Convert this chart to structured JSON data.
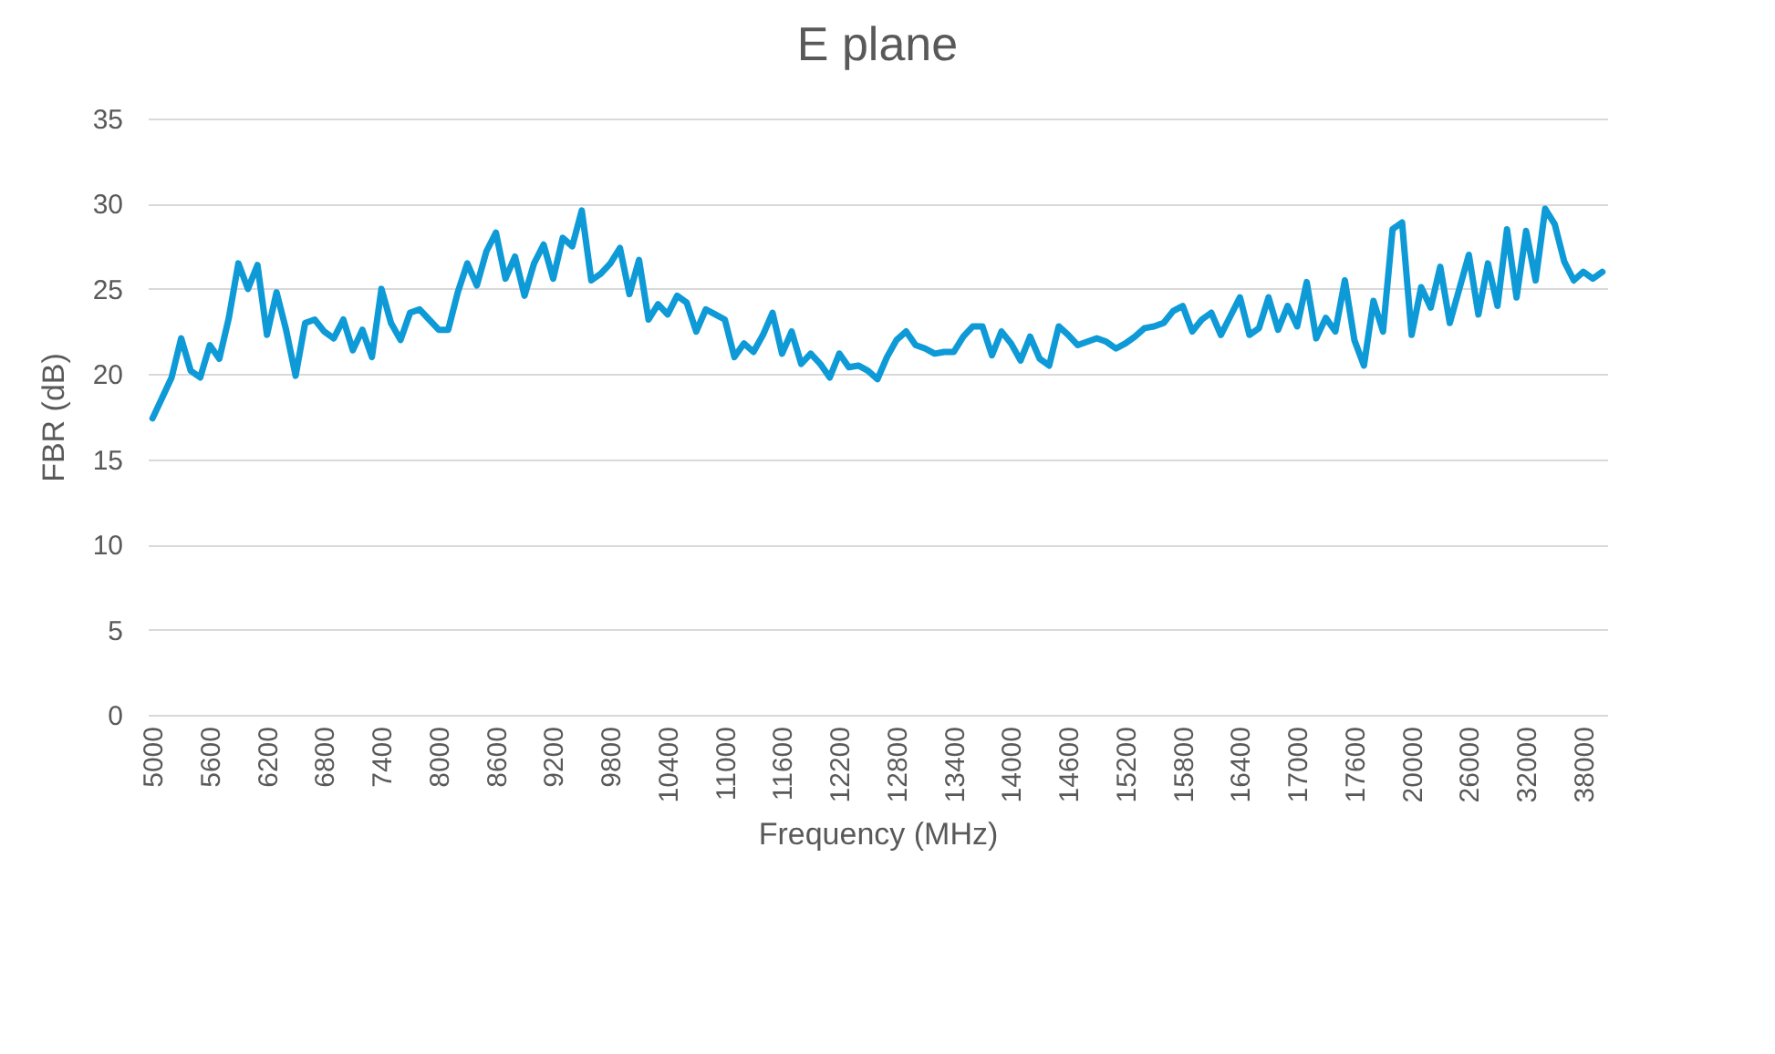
{
  "chart_data": {
    "type": "line",
    "title": "E plane",
    "xlabel": "Frequency (MHz)",
    "ylabel": "FBR (dB)",
    "categories": [
      "5000",
      null,
      null,
      null,
      null,
      null,
      "5600",
      null,
      null,
      null,
      null,
      null,
      "6200",
      null,
      null,
      null,
      null,
      null,
      "6800",
      null,
      null,
      null,
      null,
      null,
      "7400",
      null,
      null,
      null,
      null,
      null,
      "8000",
      null,
      null,
      null,
      null,
      null,
      "8600",
      null,
      null,
      null,
      null,
      null,
      "9200",
      null,
      null,
      null,
      null,
      null,
      "9800",
      null,
      null,
      null,
      null,
      null,
      "10400",
      null,
      null,
      null,
      null,
      null,
      "11000",
      null,
      null,
      null,
      null,
      null,
      "11600",
      null,
      null,
      null,
      null,
      null,
      "12200",
      null,
      null,
      null,
      null,
      null,
      "12800",
      null,
      null,
      null,
      null,
      null,
      "13400",
      null,
      null,
      null,
      null,
      null,
      "14000",
      null,
      null,
      null,
      null,
      null,
      "14600",
      null,
      null,
      null,
      null,
      null,
      "15200",
      null,
      null,
      null,
      null,
      null,
      "15800",
      null,
      null,
      null,
      null,
      null,
      "16400",
      null,
      null,
      null,
      null,
      null,
      "17000",
      null,
      null,
      null,
      null,
      null,
      "17600",
      null,
      null,
      null,
      null,
      null,
      "20000",
      null,
      null,
      null,
      null,
      null,
      "26000",
      null,
      null,
      null,
      null,
      null,
      "32000",
      null,
      null,
      null,
      null,
      null,
      "38000",
      null,
      null
    ],
    "series": [
      {
        "color": "#0e9ad7",
        "values": [
          17.4,
          18.6,
          19.8,
          22.1,
          20.2,
          19.8,
          21.7,
          20.9,
          23.3,
          26.5,
          25,
          26.4,
          22.3,
          24.8,
          22.6,
          19.9,
          23,
          23.2,
          22.5,
          22.1,
          23.2,
          21.4,
          22.6,
          21,
          25,
          23,
          22,
          23.6,
          23.8,
          23.2,
          22.6,
          22.6,
          24.8,
          26.5,
          25.2,
          27.2,
          28.3,
          25.6,
          26.9,
          24.6,
          26.5,
          27.6,
          25.6,
          28,
          27.5,
          29.6,
          25.5,
          25.9,
          26.5,
          27.4,
          24.7,
          26.7,
          23.2,
          24.1,
          23.5,
          24.6,
          24.2,
          22.5,
          23.8,
          23.5,
          23.2,
          21,
          21.8,
          21.3,
          22.3,
          23.6,
          21.2,
          22.5,
          20.6,
          21.2,
          20.6,
          19.8,
          21.2,
          20.4,
          20.5,
          20.2,
          19.7,
          21,
          22,
          22.5,
          21.7,
          21.5,
          21.2,
          21.3,
          21.3,
          22.2,
          22.8,
          22.8,
          21.1,
          22.5,
          21.8,
          20.8,
          22.2,
          20.9,
          20.5,
          22.8,
          22.3,
          21.7,
          21.9,
          22.1,
          21.9,
          21.5,
          21.8,
          22.2,
          22.7,
          22.8,
          23,
          23.7,
          24,
          22.5,
          23.2,
          23.6,
          22.3,
          23.4,
          24.5,
          22.3,
          22.7,
          24.5,
          22.6,
          24,
          22.8,
          25.4,
          22.1,
          23.3,
          22.5,
          25.5,
          22,
          20.5,
          24.3,
          22.5,
          28.5,
          28.9,
          22.3,
          25.1,
          23.9,
          26.3,
          23,
          25,
          27,
          23.5,
          26.5,
          24,
          28.5,
          24.5,
          28.4,
          25.5,
          29.7,
          28.8,
          26.6,
          25.5,
          26,
          25.6,
          26
        ]
      }
    ],
    "ylim": [
      0,
      35
    ],
    "yticks": [
      0,
      5,
      10,
      15,
      20,
      25,
      30,
      35
    ],
    "grid": "y"
  }
}
